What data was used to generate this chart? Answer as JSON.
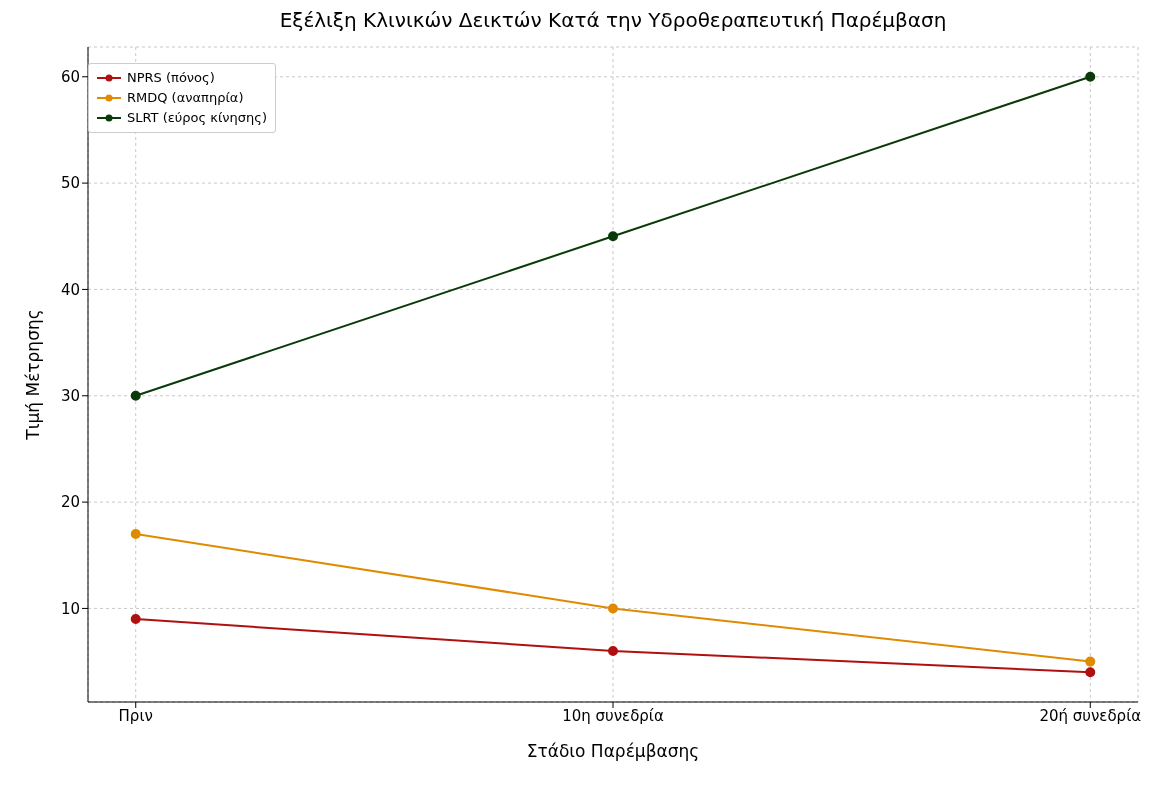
{
  "chart_data": {
    "type": "line",
    "title": "Εξέλιξη Κλινικών Δεικτών Κατά την Υδροθεραπευτική Παρέμβαση",
    "xlabel": "Στάδιο Παρέμβασης",
    "ylabel": "Τιμή Μέτρησης",
    "categories": [
      "Πριν",
      "10η συνεδρία",
      "20ή συνεδρία"
    ],
    "series": [
      {
        "name": "NPRS (πόνος)",
        "color": "#b01010",
        "values": [
          9,
          6,
          4
        ]
      },
      {
        "name": "RMDQ (αναπηρία)",
        "color": "#e08a00",
        "values": [
          17,
          10,
          5
        ]
      },
      {
        "name": "SLRT (εύρος κίνησης)",
        "color": "#0a3a0a",
        "values": [
          30,
          45,
          60
        ]
      }
    ],
    "ylim": [
      1.2,
      62.8
    ],
    "yticks": [
      10,
      20,
      30,
      40,
      50,
      60
    ],
    "grid": true,
    "legend": "top left",
    "marker": "circle",
    "line_style": "solid"
  }
}
